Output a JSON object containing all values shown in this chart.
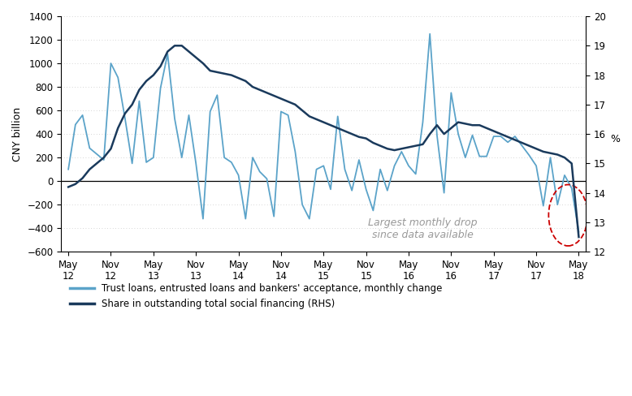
{
  "ylabel_left": "CNY billion",
  "ylabel_right": "%",
  "ylim_left": [
    -600,
    1400
  ],
  "ylim_right": [
    12,
    20
  ],
  "yticks_left": [
    -600,
    -400,
    -200,
    0,
    200,
    400,
    600,
    800,
    1000,
    1200,
    1400
  ],
  "yticks_right": [
    12,
    13,
    14,
    15,
    16,
    17,
    18,
    19,
    20
  ],
  "xtick_labels": [
    "May\n12",
    "Nov\n12",
    "May\n13",
    "Nov\n13",
    "May\n14",
    "Nov\n14",
    "May\n15",
    "Nov\n15",
    "May\n16",
    "Nov\n16",
    "May\n17",
    "Nov\n17",
    "May\n18"
  ],
  "xtick_positions": [
    0,
    6,
    12,
    18,
    24,
    30,
    36,
    42,
    48,
    54,
    60,
    66,
    72
  ],
  "color_light": "#5BA3C9",
  "color_dark": "#1A3A5C",
  "legend1": "Trust loans, entrusted loans and bankers' acceptance, monthly change",
  "legend2": "Share in outstanding total social financing (RHS)",
  "annotation": "Largest monthly drop\nsince data available",
  "annotation_color": "#999999",
  "circle_color": "#CC0000",
  "lhs_data": [
    100,
    480,
    560,
    280,
    230,
    180,
    1000,
    880,
    530,
    150,
    680,
    160,
    200,
    790,
    1080,
    530,
    200,
    560,
    150,
    -320,
    590,
    730,
    200,
    160,
    50,
    -320,
    200,
    80,
    20,
    -300,
    590,
    560,
    250,
    -200,
    -320,
    100,
    130,
    -70,
    550,
    100,
    -80,
    180,
    -70,
    -250,
    100,
    -80,
    130,
    250,
    130,
    60,
    500,
    1250,
    390,
    -100,
    750,
    400,
    200,
    390,
    210,
    210,
    380,
    380,
    330,
    380,
    300,
    220,
    130,
    -210,
    200,
    -200,
    50,
    -60,
    -430
  ],
  "rhs_data": [
    14.2,
    14.3,
    14.5,
    14.8,
    15.0,
    15.2,
    15.5,
    16.2,
    16.7,
    17.0,
    17.5,
    17.8,
    18.0,
    18.3,
    18.8,
    19.0,
    19.0,
    18.8,
    18.6,
    18.4,
    18.15,
    18.1,
    18.05,
    18.0,
    17.9,
    17.8,
    17.6,
    17.5,
    17.4,
    17.3,
    17.2,
    17.1,
    17.0,
    16.8,
    16.6,
    16.5,
    16.4,
    16.3,
    16.2,
    16.1,
    16.0,
    15.9,
    15.85,
    15.7,
    15.6,
    15.5,
    15.45,
    15.5,
    15.55,
    15.6,
    15.65,
    16.0,
    16.3,
    16.0,
    16.2,
    16.4,
    16.35,
    16.3,
    16.3,
    16.2,
    16.1,
    16.0,
    15.9,
    15.8,
    15.7,
    15.6,
    15.5,
    15.4,
    15.35,
    15.3,
    15.2,
    15.0,
    12.5
  ]
}
